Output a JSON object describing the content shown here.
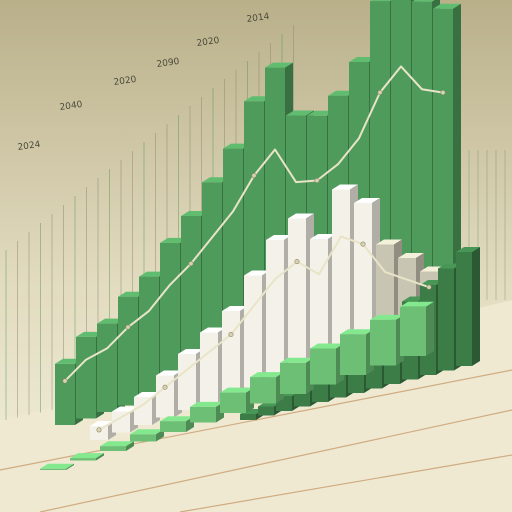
{
  "chart_data": {
    "type": "bar",
    "style": "3d-isometric-illustration",
    "grid": true,
    "legend": "none",
    "colors": {
      "background_top": "#b9b08a",
      "background_bottom": "#f3efdc",
      "bar_green": "#4f9b5c",
      "bar_green_light": "#6cbf74",
      "bar_green_dark": "#3b7c47",
      "bar_white": "#f4f2e8",
      "bar_white_shadow": "#c9c5b3",
      "trend_line": "#e9e4c8",
      "floor_line": "#b7793f"
    },
    "x_tick_labels": [
      "2024",
      "2040",
      "2020",
      "2090",
      "2020",
      "2014"
    ],
    "series": [
      {
        "values": [
          9,
          12,
          13,
          16,
          18,
          22,
          25,
          29,
          33,
          39,
          43,
          35,
          34,
          36,
          40,
          48,
          52,
          46,
          44
        ]
      },
      {
        "values": [
          2,
          3,
          4,
          6,
          8,
          10,
          12,
          16,
          20,
          22,
          18,
          24,
          21,
          14,
          11,
          8
        ]
      },
      {
        "values": [
          2,
          3,
          5,
          7,
          9,
          12,
          14,
          17,
          20,
          26,
          30,
          34,
          38
        ]
      },
      {
        "values": [
          1,
          2,
          4,
          6,
          9,
          13,
          17,
          22,
          26,
          30,
          34,
          38,
          41
        ]
      }
    ]
  }
}
